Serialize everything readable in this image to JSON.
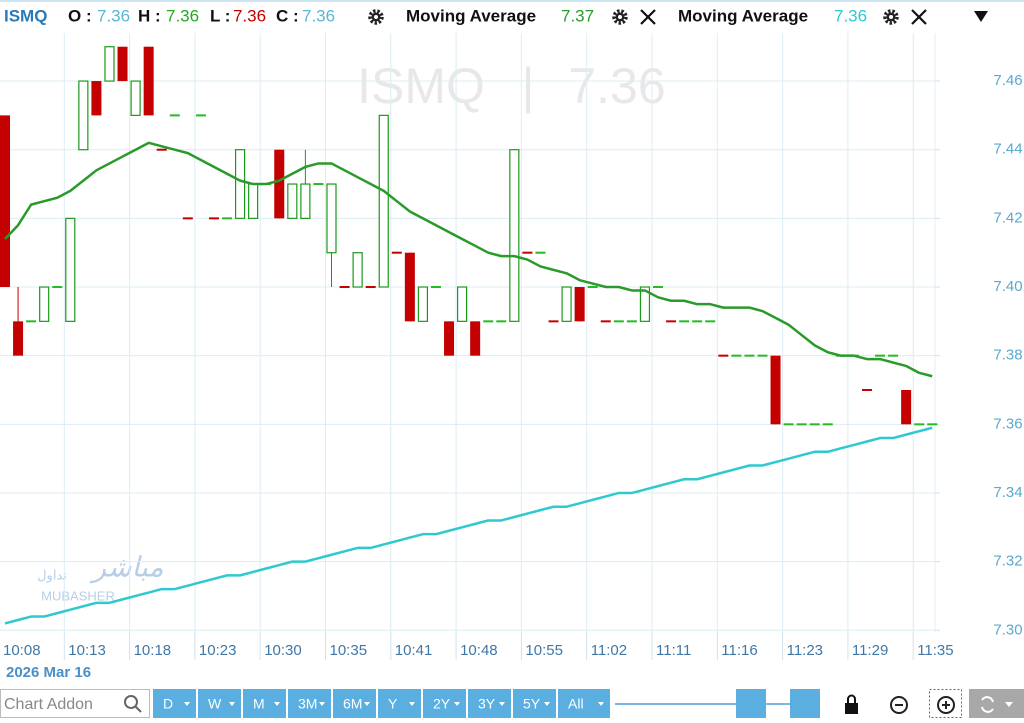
{
  "chart_data": {
    "type": "candlestick",
    "symbol": "ISMQ",
    "quote_labels": {
      "open": "O :",
      "high": "H :",
      "low": "L :",
      "close": "C :"
    },
    "quote": {
      "open": 7.36,
      "high": 7.36,
      "low": 7.36,
      "close": 7.36
    },
    "watermark_separator": "|",
    "date_label": "2026 Mar 16",
    "logo": {
      "arabic": "مباشر",
      "arabic_sub": "تداول",
      "latin": "MUBASHER"
    },
    "up_color": "#1a9a1a",
    "down_color": "#c40000",
    "categories": [
      "10:08",
      null,
      null,
      null,
      null,
      "10:13",
      null,
      null,
      null,
      null,
      "10:18",
      null,
      null,
      null,
      null,
      "10:23",
      null,
      null,
      null,
      null,
      "10:30",
      null,
      null,
      null,
      null,
      "10:35",
      null,
      null,
      null,
      null,
      "10:41",
      null,
      null,
      null,
      null,
      "10:48",
      null,
      null,
      null,
      null,
      "10:55",
      null,
      null,
      null,
      null,
      "11:02",
      null,
      null,
      null,
      null,
      "11:11",
      null,
      null,
      null,
      null,
      "11:16",
      null,
      null,
      null,
      null,
      "11:23",
      null,
      null,
      null,
      null,
      "11:29",
      null,
      null,
      null,
      null,
      "11:35",
      null
    ],
    "open": [
      7.45,
      7.39,
      7.39,
      7.39,
      7.4,
      7.39,
      7.44,
      7.46,
      7.46,
      7.47,
      7.45,
      7.47,
      7.44,
      7.45,
      7.42,
      7.45,
      7.42,
      7.42,
      7.42,
      7.42,
      7.43,
      7.44,
      7.42,
      7.42,
      7.43,
      7.41,
      7.4,
      7.4,
      7.4,
      7.4,
      7.41,
      7.41,
      7.39,
      7.4,
      7.39,
      7.39,
      7.39,
      7.39,
      7.39,
      7.39,
      7.41,
      7.41,
      7.39,
      7.39,
      7.4,
      7.4,
      7.39,
      7.39,
      7.39,
      7.39,
      7.4,
      7.39,
      7.39,
      7.39,
      7.39,
      7.38,
      7.38,
      7.38,
      7.38,
      7.38,
      7.36,
      7.36,
      7.36,
      7.36,
      7.38,
      7.38,
      7.37,
      7.38,
      7.38,
      7.37,
      7.36,
      7.36
    ],
    "high": [
      7.45,
      7.4,
      7.39,
      7.4,
      7.4,
      7.42,
      7.46,
      7.46,
      7.47,
      7.47,
      7.46,
      7.47,
      7.44,
      7.45,
      7.42,
      7.45,
      7.42,
      7.42,
      7.44,
      7.43,
      7.43,
      7.44,
      7.43,
      7.44,
      7.43,
      7.43,
      7.4,
      7.41,
      7.4,
      7.45,
      7.41,
      7.41,
      7.4,
      7.4,
      7.39,
      7.4,
      7.39,
      7.39,
      7.39,
      7.44,
      7.41,
      7.41,
      7.39,
      7.4,
      7.4,
      7.4,
      7.39,
      7.39,
      7.39,
      7.4,
      7.4,
      7.39,
      7.39,
      7.39,
      7.39,
      7.38,
      7.38,
      7.38,
      7.38,
      7.38,
      7.36,
      7.36,
      7.36,
      7.36,
      7.38,
      7.38,
      7.37,
      7.38,
      7.38,
      7.37,
      7.36,
      7.36
    ],
    "low": [
      7.4,
      7.38,
      7.39,
      7.39,
      7.4,
      7.39,
      7.44,
      7.45,
      7.46,
      7.46,
      7.45,
      7.45,
      7.44,
      7.45,
      7.42,
      7.45,
      7.42,
      7.42,
      7.42,
      7.42,
      7.43,
      7.42,
      7.42,
      7.42,
      7.43,
      7.4,
      7.4,
      7.4,
      7.4,
      7.4,
      7.41,
      7.39,
      7.39,
      7.4,
      7.38,
      7.39,
      7.38,
      7.39,
      7.39,
      7.39,
      7.41,
      7.41,
      7.39,
      7.39,
      7.39,
      7.4,
      7.39,
      7.39,
      7.39,
      7.39,
      7.4,
      7.39,
      7.39,
      7.39,
      7.39,
      7.38,
      7.38,
      7.38,
      7.38,
      7.36,
      7.36,
      7.36,
      7.36,
      7.36,
      7.38,
      7.38,
      7.37,
      7.38,
      7.38,
      7.36,
      7.36,
      7.36
    ],
    "close": [
      7.4,
      7.38,
      7.39,
      7.4,
      7.4,
      7.42,
      7.46,
      7.45,
      7.47,
      7.46,
      7.46,
      7.45,
      7.44,
      7.45,
      7.42,
      7.45,
      7.42,
      7.42,
      7.44,
      7.43,
      7.43,
      7.42,
      7.43,
      7.43,
      7.43,
      7.43,
      7.4,
      7.41,
      7.4,
      7.45,
      7.41,
      7.39,
      7.4,
      7.4,
      7.38,
      7.4,
      7.38,
      7.39,
      7.39,
      7.44,
      7.41,
      7.41,
      7.39,
      7.4,
      7.39,
      7.4,
      7.39,
      7.39,
      7.39,
      7.4,
      7.4,
      7.39,
      7.39,
      7.39,
      7.39,
      7.38,
      7.38,
      7.38,
      7.38,
      7.36,
      7.36,
      7.36,
      7.36,
      7.36,
      7.38,
      7.38,
      7.37,
      7.38,
      7.38,
      7.36,
      7.36,
      7.36
    ],
    "series": [
      {
        "name": "Moving Average",
        "color": "#2a9a2a",
        "last_value": 7.37,
        "values": [
          7.414,
          7.418,
          7.424,
          7.425,
          7.426,
          7.428,
          7.431,
          7.434,
          7.436,
          7.438,
          7.44,
          7.442,
          7.441,
          7.44,
          7.439,
          7.437,
          7.435,
          7.433,
          7.431,
          7.43,
          7.43,
          7.431,
          7.433,
          7.435,
          7.436,
          7.436,
          7.434,
          7.432,
          7.43,
          7.428,
          7.425,
          7.422,
          7.42,
          7.418,
          7.416,
          7.414,
          7.412,
          7.41,
          7.409,
          7.409,
          7.408,
          7.406,
          7.405,
          7.404,
          7.402,
          7.401,
          7.4,
          7.4,
          7.399,
          7.399,
          7.397,
          7.396,
          7.396,
          7.395,
          7.395,
          7.394,
          7.394,
          7.394,
          7.393,
          7.391,
          7.389,
          7.386,
          7.383,
          7.381,
          7.38,
          7.38,
          7.379,
          7.379,
          7.378,
          7.377,
          7.375,
          7.374
        ]
      },
      {
        "name": "Moving Average",
        "color": "#2ec9cf",
        "last_value": 7.36,
        "values": [
          7.302,
          7.303,
          7.304,
          7.304,
          7.305,
          7.306,
          7.307,
          7.308,
          7.308,
          7.309,
          7.31,
          7.311,
          7.312,
          7.312,
          7.313,
          7.314,
          7.315,
          7.316,
          7.316,
          7.317,
          7.318,
          7.319,
          7.32,
          7.32,
          7.321,
          7.322,
          7.323,
          7.324,
          7.324,
          7.325,
          7.326,
          7.327,
          7.328,
          7.328,
          7.329,
          7.33,
          7.331,
          7.332,
          7.332,
          7.333,
          7.334,
          7.335,
          7.336,
          7.336,
          7.337,
          7.338,
          7.339,
          7.34,
          7.34,
          7.341,
          7.342,
          7.343,
          7.344,
          7.344,
          7.345,
          7.346,
          7.347,
          7.348,
          7.348,
          7.349,
          7.35,
          7.351,
          7.352,
          7.352,
          7.353,
          7.354,
          7.355,
          7.356,
          7.356,
          7.357,
          7.358,
          7.359
        ]
      }
    ],
    "ylim": [
      7.2995,
      7.474
    ],
    "yticks": [
      {
        "value": 7.3,
        "label": "7.30"
      },
      7.32,
      7.34,
      7.36,
      7.38,
      {
        "value": 7.4,
        "label": "7.40"
      },
      7.42,
      7.44,
      7.46
    ],
    "grid": true,
    "toolbar": {
      "search_placeholder": "Chart Addon",
      "periods": [
        "D",
        "W",
        "M",
        "3M",
        "6M",
        "Y",
        "2Y",
        "3Y",
        "5Y",
        "All"
      ]
    }
  }
}
